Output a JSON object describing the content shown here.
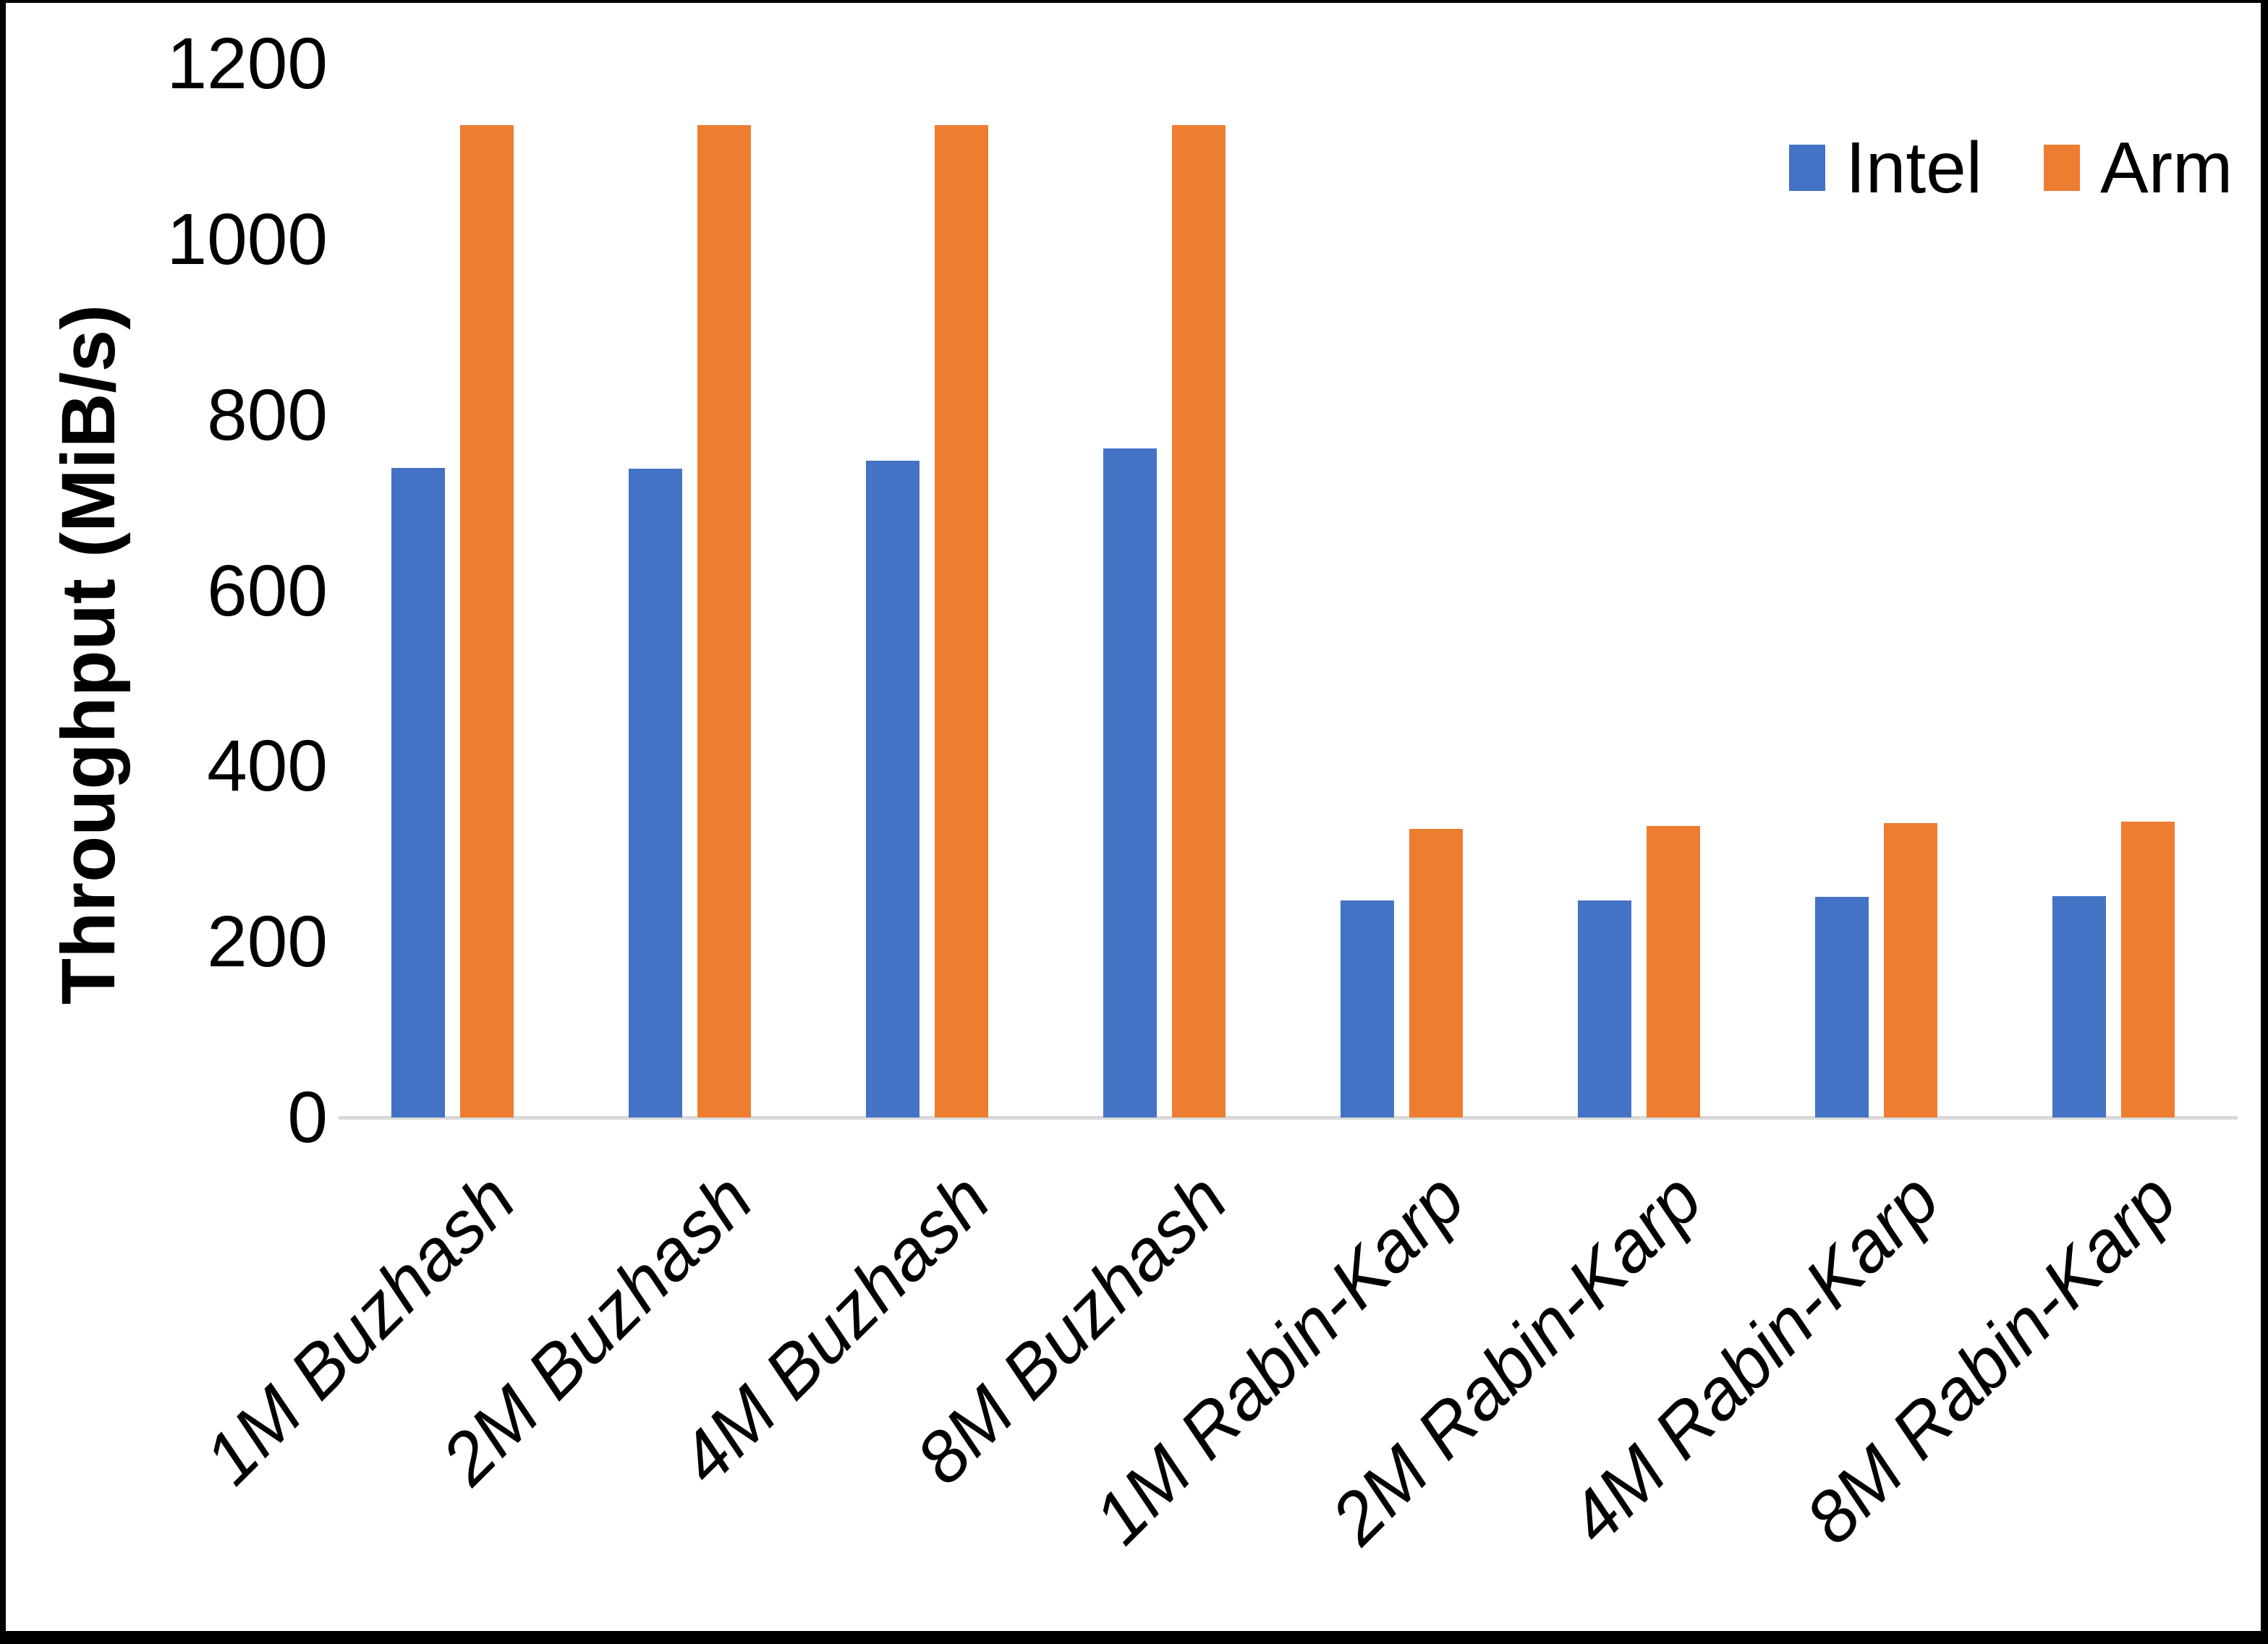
{
  "chart_data": {
    "type": "bar",
    "title": "",
    "xlabel": "",
    "ylabel": "Throughput (MiB/s)",
    "ylim": [
      0,
      1200
    ],
    "ytick_step": 200,
    "ytick_labels": [
      "0",
      "200",
      "400",
      "600",
      "800",
      "1000",
      "1200"
    ],
    "grid": false,
    "legend_position": "top-right",
    "categories": [
      "1M Buzhash",
      "2M Buzhash",
      "4M Buzhash",
      "8M Buzhash",
      "1M Rabin-Karp",
      "2M Rabin-Karp",
      "4M Rabin-Karp",
      "8M Rabin-Karp"
    ],
    "series": [
      {
        "name": "Intel",
        "color": "#4472C4",
        "values": [
          740,
          739,
          748,
          762,
          247,
          247,
          251,
          252
        ]
      },
      {
        "name": "Arm",
        "color": "#ED7D31",
        "values": [
          1130,
          1130,
          1130,
          1130,
          329,
          332,
          335,
          337
        ]
      }
    ],
    "axis_line_color": "#D9D9D9",
    "text_color": "#000000"
  }
}
